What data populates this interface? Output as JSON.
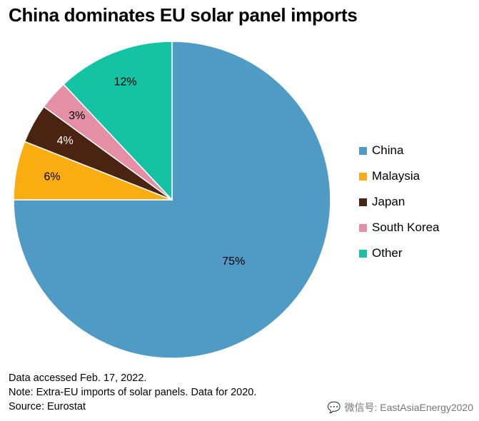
{
  "title": "China dominates EU solar panel imports",
  "chart_data": {
    "type": "pie",
    "title": "China dominates EU solar panel imports",
    "slices": [
      {
        "label": "China",
        "value": 75,
        "display": "75%",
        "color": "#4f9bc6"
      },
      {
        "label": "Malaysia",
        "value": 6,
        "display": "6%",
        "color": "#f9ad10"
      },
      {
        "label": "Japan",
        "value": 4,
        "display": "4%",
        "color": "#4a2410"
      },
      {
        "label": "South Korea",
        "value": 3,
        "display": "3%",
        "color": "#e58fa6"
      },
      {
        "label": "Other",
        "value": 12,
        "display": "12%",
        "color": "#13c3a3"
      }
    ],
    "legend_position": "right"
  },
  "notes": {
    "accessed": "Data accessed Feb. 17, 2022.",
    "note": "Note: Extra-EU imports of solar panels. Data for 2020.",
    "source": "Source: Eurostat"
  },
  "watermark": "微信号: EastAsiaEnergy2020"
}
